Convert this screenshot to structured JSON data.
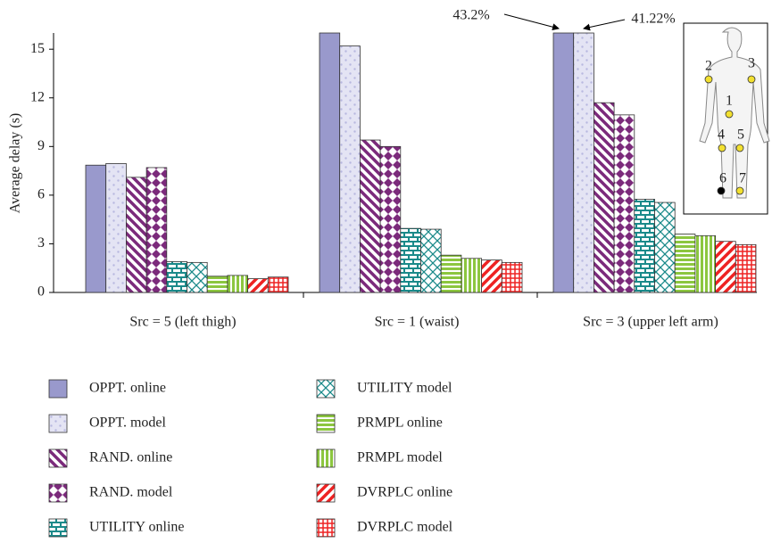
{
  "chart_data": {
    "type": "bar",
    "y_label": "Average delay (s)",
    "categories": [
      "Src = 5 (left thigh)",
      "Src = 1 (waist)",
      "Src = 3 (upper left arm)"
    ],
    "ylim": [
      0,
      16
    ],
    "yticks": [
      0,
      3,
      6,
      9,
      12,
      15
    ],
    "annotations": [
      "43.2%",
      "41.22%"
    ],
    "series": [
      {
        "name": "OPPT. online",
        "color": "#9999cc",
        "values": [
          7.85,
          16,
          16
        ]
      },
      {
        "name": "OPPT. model",
        "color": "#b8b8e0",
        "values": [
          7.95,
          15.2,
          16
        ]
      },
      {
        "name": "RAND. online",
        "color": "#7b2a7b",
        "values": [
          7.1,
          9.4,
          11.7
        ]
      },
      {
        "name": "RAND. model",
        "color": "#7b2a7b",
        "values": [
          7.7,
          9.0,
          10.95
        ]
      },
      {
        "name": "UTILITY online",
        "color": "#1a8a8a",
        "values": [
          1.9,
          3.95,
          5.75
        ]
      },
      {
        "name": "UTILITY model",
        "color": "#1a8a8a",
        "values": [
          1.85,
          3.9,
          5.55
        ]
      },
      {
        "name": "PRMPL online",
        "color": "#8cc63f",
        "values": [
          1.0,
          2.3,
          3.6
        ]
      },
      {
        "name": "PRMPL model",
        "color": "#8cc63f",
        "values": [
          1.05,
          2.1,
          3.5
        ]
      },
      {
        "name": "DVRPLC online",
        "color": "#ee2222",
        "values": [
          0.85,
          2.0,
          3.15
        ]
      },
      {
        "name": "DVRPLC model",
        "color": "#ee2222",
        "values": [
          0.95,
          1.85,
          2.95
        ]
      }
    ]
  },
  "inset": {
    "points": [
      "2",
      "3",
      "1",
      "4",
      "5",
      "6",
      "7"
    ]
  }
}
